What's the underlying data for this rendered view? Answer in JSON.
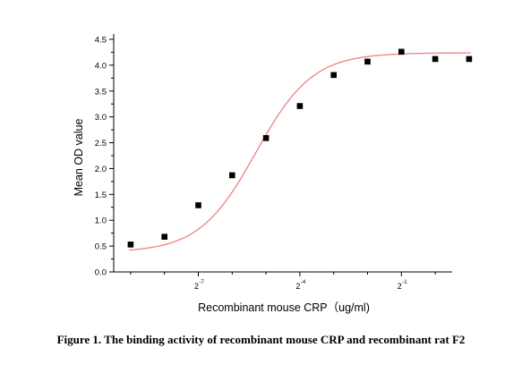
{
  "chart_data": {
    "type": "scatter",
    "ylabel": "Mean OD value",
    "xlabel": "Recombinant mouse CRP（ug/ml)",
    "x_scale": "log2",
    "x_ticks": [
      {
        "exp": -7,
        "base": "2",
        "sup": "-7"
      },
      {
        "exp": -4,
        "base": "2",
        "sup": "-4"
      },
      {
        "exp": -1,
        "base": "2",
        "sup": "-1"
      }
    ],
    "ylim": [
      0,
      4.5
    ],
    "y_ticks": [
      "0.0",
      "0.5",
      "1.0",
      "1.5",
      "2.0",
      "2.5",
      "3.0",
      "3.5",
      "4.0",
      "4.5"
    ],
    "x_exponent_range": [
      -9.5,
      0.5
    ],
    "points": [
      {
        "x_log2": -9.0,
        "y": 0.53
      },
      {
        "x_log2": -8.0,
        "y": 0.68
      },
      {
        "x_log2": -7.0,
        "y": 1.29
      },
      {
        "x_log2": -6.0,
        "y": 1.87
      },
      {
        "x_log2": -5.0,
        "y": 2.59
      },
      {
        "x_log2": -4.0,
        "y": 3.21
      },
      {
        "x_log2": -3.0,
        "y": 3.81
      },
      {
        "x_log2": -2.0,
        "y": 4.07
      },
      {
        "x_log2": -1.0,
        "y": 4.26
      },
      {
        "x_log2": 0.0,
        "y": 4.12
      },
      {
        "x_log2": 1.0,
        "y": 4.12
      }
    ],
    "fit": {
      "model": "4PL",
      "bottom": 0.38,
      "top": 4.24,
      "log_ec50": -5.3,
      "hill": 0.52,
      "color": "#f08080"
    },
    "marker_color": "#000000"
  },
  "caption": "Figure 1. The binding activity of recombinant mouse CRP and recombinant rat F2"
}
